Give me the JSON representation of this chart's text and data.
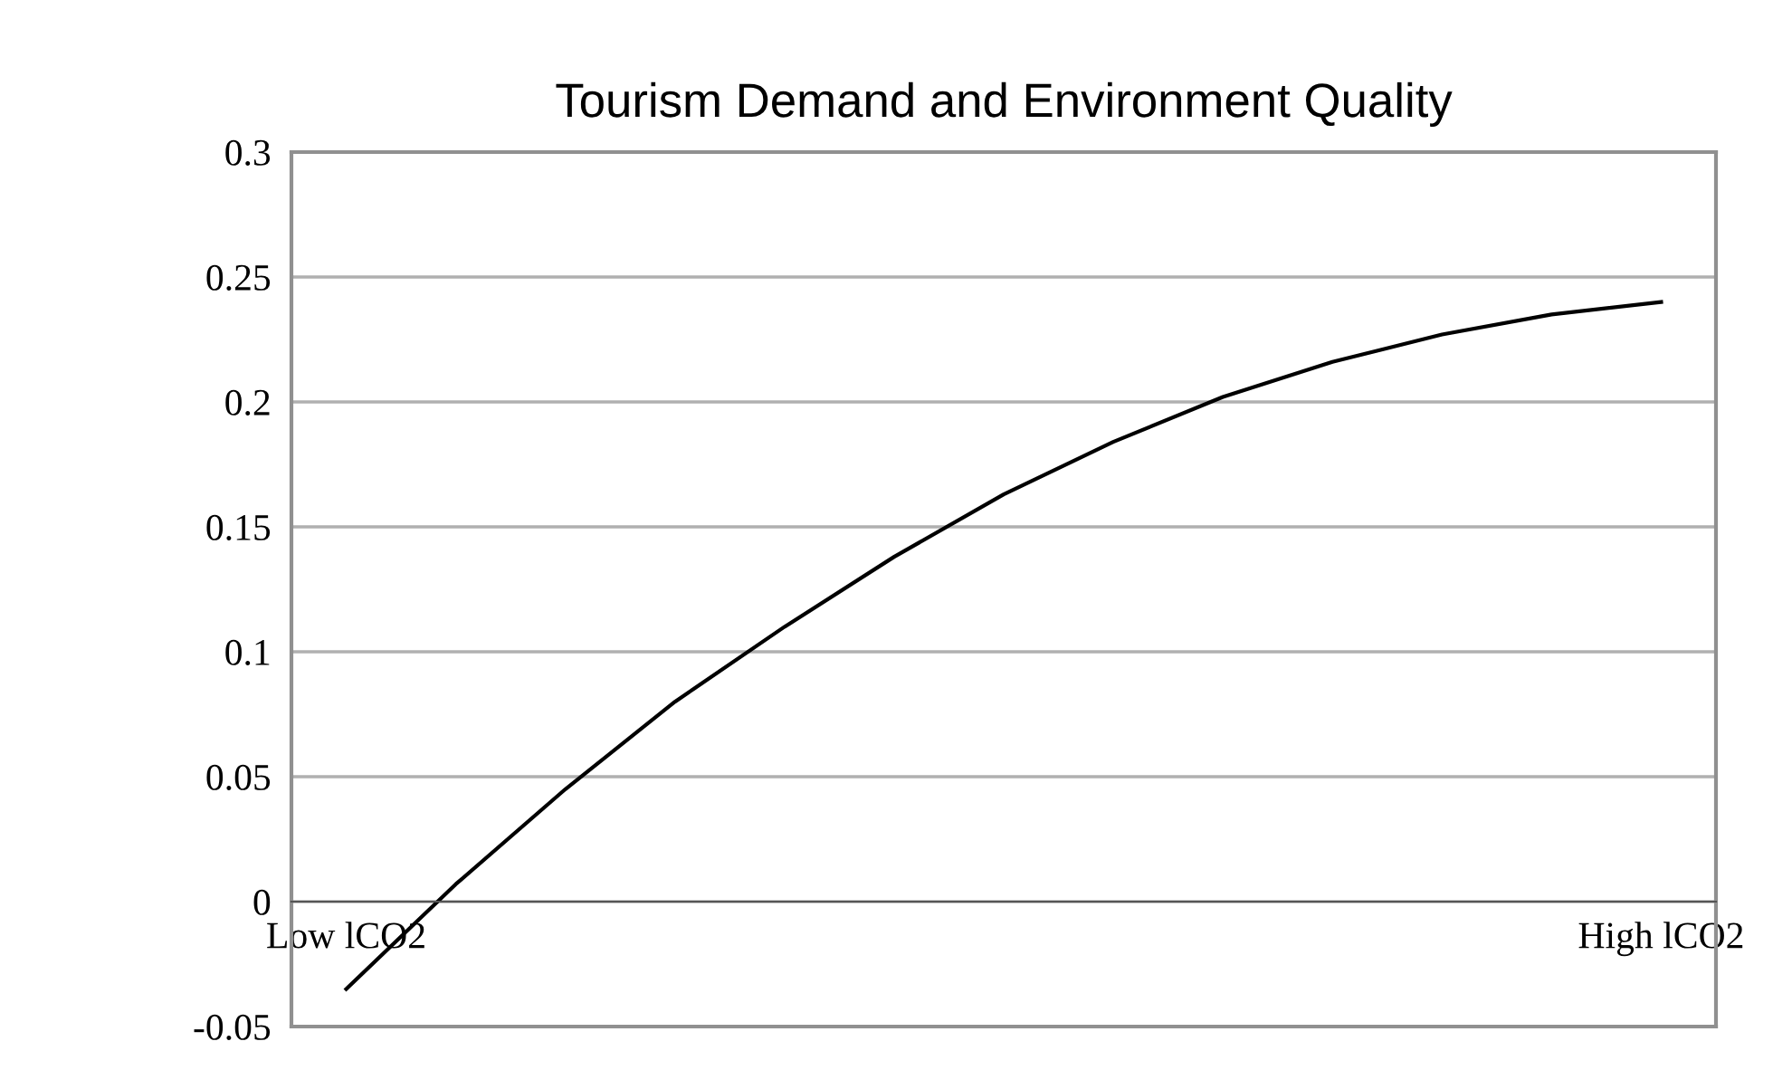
{
  "chart_data": {
    "type": "line",
    "title": "Tourism Demand and Environment Quality",
    "categories": [
      "Low lCO2",
      null,
      null,
      null,
      null,
      null,
      null,
      null,
      null,
      null,
      null,
      null,
      "High lCO2"
    ],
    "series": [
      {
        "color": "#000000",
        "values": [
          -0.035,
          0.007,
          0.045,
          0.08,
          0.11,
          0.138,
          0.163,
          0.184,
          0.202,
          0.216,
          0.227,
          0.235,
          0.24
        ]
      }
    ],
    "ylim": [
      -0.05,
      0.3
    ],
    "yticks": [
      {
        "value": -0.05,
        "label": "-0.05"
      },
      0,
      0.05,
      0.1,
      0.15,
      0.2,
      0.25,
      0.3
    ],
    "grid": "y",
    "marker": "none",
    "line_style": "solid"
  }
}
